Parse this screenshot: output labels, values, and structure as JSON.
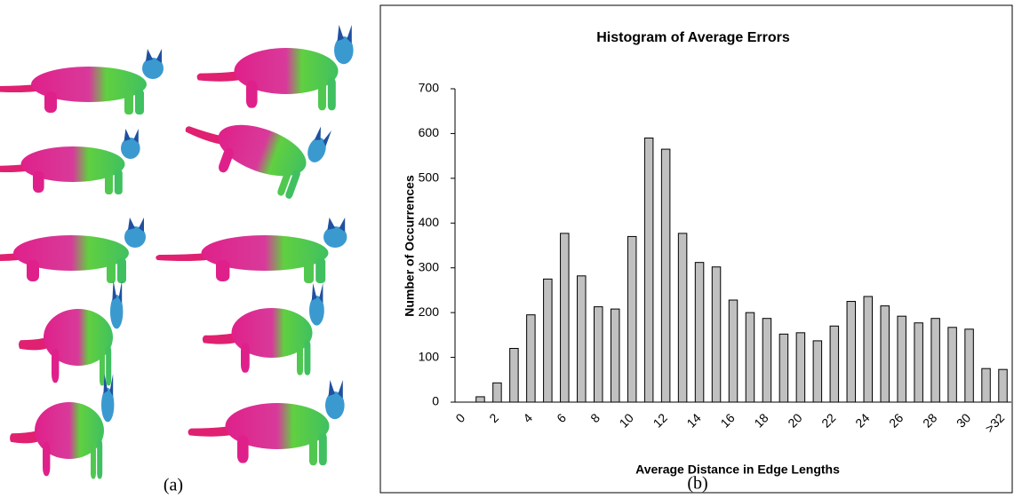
{
  "chart_data": {
    "type": "bar",
    "title": "Histogram of Average Errors",
    "x_label": "Average Distance in Edge Lengths",
    "y_label": "Number of Occurrences",
    "categories": [
      "0",
      null,
      "2",
      null,
      "4",
      null,
      "6",
      null,
      "8",
      null,
      "10",
      null,
      "12",
      null,
      "14",
      null,
      "16",
      null,
      "18",
      null,
      "20",
      null,
      "22",
      null,
      "24",
      null,
      "26",
      null,
      "28",
      null,
      "30",
      null,
      ">32"
    ],
    "values": [
      0,
      12,
      43,
      120,
      195,
      275,
      377,
      282,
      213,
      208,
      370,
      590,
      565,
      377,
      312,
      302,
      228,
      200,
      187,
      152,
      155,
      137,
      170,
      225,
      236,
      215,
      192,
      177,
      187,
      167,
      163,
      75,
      73
    ],
    "color": "#c0c0c0",
    "ylim": [
      0,
      700
    ],
    "yticks": [
      0,
      100,
      200,
      300,
      400,
      500,
      600,
      700
    ],
    "grid": false
  },
  "figure": {
    "panel_a_label": "(a)",
    "panel_b_label": "(b)"
  }
}
